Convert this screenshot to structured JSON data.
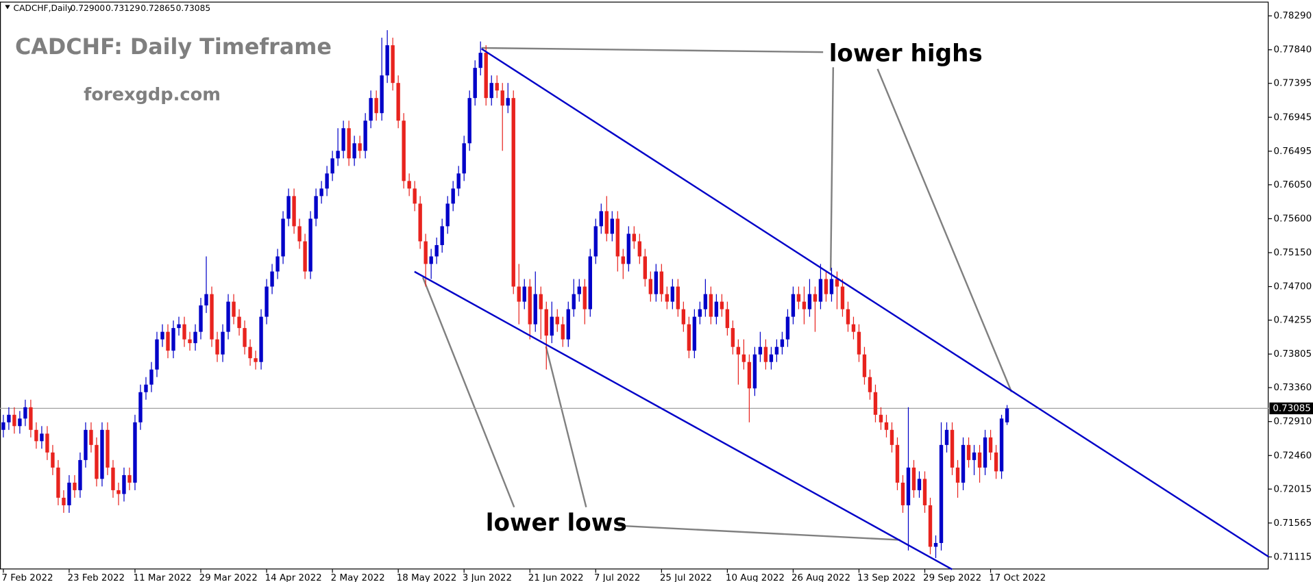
{
  "chart_data": {
    "type": "candlestick",
    "symbol": "CADCHF,Daily",
    "ohlc_labels": [
      "0.72900",
      "0.73129",
      "0.72865",
      "0.73085"
    ],
    "title": "CADCHF: Daily Timeframe",
    "subtitle": "forexgdp.com",
    "annotations": [
      "lower highs",
      "lower lows"
    ],
    "up_color": "#0000c8",
    "down_color": "#e8231e",
    "grid": false,
    "ylim": [
      0.7095,
      0.785
    ],
    "yticks": [
      {
        "value": 0.7829,
        "label": "0.78290"
      },
      {
        "value": 0.7784,
        "label": "0.77840"
      },
      0.77395,
      0.76945,
      0.76495,
      {
        "value": 0.7605,
        "label": "0.76050"
      },
      {
        "value": 0.756,
        "label": "0.75600"
      },
      {
        "value": 0.7515,
        "label": "0.75150"
      },
      {
        "value": 0.747,
        "label": "0.74700"
      },
      0.74255,
      0.73805,
      {
        "value": 0.7336,
        "label": "0.73360"
      },
      {
        "value": 0.7291,
        "label": "0.72910"
      },
      {
        "value": 0.7246,
        "label": "0.72460"
      },
      0.72015,
      0.71565,
      0.71115
    ],
    "current_price": {
      "value": 0.73085,
      "label": "0.73085"
    },
    "categories": [
      "7 Feb 2022",
      null,
      null,
      null,
      null,
      null,
      null,
      null,
      null,
      null,
      null,
      null,
      "23 Feb 2022",
      null,
      null,
      null,
      null,
      null,
      null,
      null,
      null,
      null,
      null,
      null,
      "11 Mar 2022",
      null,
      null,
      null,
      null,
      null,
      null,
      null,
      null,
      null,
      null,
      null,
      "29 Mar 2022",
      null,
      null,
      null,
      null,
      null,
      null,
      null,
      null,
      null,
      null,
      null,
      "14 Apr 2022",
      null,
      null,
      null,
      null,
      null,
      null,
      null,
      null,
      null,
      null,
      null,
      "2 May 2022",
      null,
      null,
      null,
      null,
      null,
      null,
      null,
      null,
      null,
      null,
      null,
      "18 May 2022",
      null,
      null,
      null,
      null,
      null,
      null,
      null,
      null,
      null,
      null,
      null,
      "3 Jun 2022",
      null,
      null,
      null,
      null,
      null,
      null,
      null,
      null,
      null,
      null,
      null,
      "21 Jun 2022",
      null,
      null,
      null,
      null,
      null,
      null,
      null,
      null,
      null,
      null,
      null,
      "7 Jul 2022",
      null,
      null,
      null,
      null,
      null,
      null,
      null,
      null,
      null,
      null,
      null,
      "25 Jul 2022",
      null,
      null,
      null,
      null,
      null,
      null,
      null,
      null,
      null,
      null,
      null,
      "10 Aug 2022",
      null,
      null,
      null,
      null,
      null,
      null,
      null,
      null,
      null,
      null,
      null,
      "26 Aug 2022",
      null,
      null,
      null,
      null,
      null,
      null,
      null,
      null,
      null,
      null,
      null,
      "13 Sep 2022",
      null,
      null,
      null,
      null,
      null,
      null,
      null,
      null,
      null,
      null,
      null,
      "29 Sep 2022",
      null,
      null,
      null,
      null,
      null,
      null,
      null,
      null,
      null,
      null,
      null,
      "17 Oct 2022",
      null,
      null,
      null
    ],
    "candles": [
      [
        0.728,
        0.73,
        0.727,
        0.729
      ],
      [
        0.729,
        0.731,
        0.728,
        0.73
      ],
      [
        0.73,
        0.731,
        0.7275,
        0.7285
      ],
      [
        0.7285,
        0.7305,
        0.7275,
        0.7295
      ],
      [
        0.7295,
        0.732,
        0.7285,
        0.731
      ],
      [
        0.731,
        0.732,
        0.727,
        0.728
      ],
      [
        0.728,
        0.729,
        0.7255,
        0.7265
      ],
      [
        0.7265,
        0.7285,
        0.7255,
        0.7275
      ],
      [
        0.7275,
        0.7285,
        0.724,
        0.725
      ],
      [
        0.725,
        0.726,
        0.722,
        0.723
      ],
      [
        0.723,
        0.724,
        0.718,
        0.719
      ],
      [
        0.719,
        0.72,
        0.717,
        0.718
      ],
      [
        0.718,
        0.722,
        0.717,
        0.721
      ],
      [
        0.721,
        0.722,
        0.719,
        0.72
      ],
      [
        0.72,
        0.725,
        0.719,
        0.724
      ],
      [
        0.724,
        0.729,
        0.723,
        0.728
      ],
      [
        0.728,
        0.729,
        0.725,
        0.726
      ],
      [
        0.726,
        0.727,
        0.7205,
        0.7215
      ],
      [
        0.7215,
        0.729,
        0.7205,
        0.728
      ],
      [
        0.728,
        0.729,
        0.722,
        0.723
      ],
      [
        0.723,
        0.724,
        0.719,
        0.72
      ],
      [
        0.72,
        0.721,
        0.718,
        0.7195
      ],
      [
        0.7195,
        0.723,
        0.7185,
        0.722
      ],
      [
        0.722,
        0.723,
        0.72,
        0.721
      ],
      [
        0.721,
        0.73,
        0.72,
        0.729
      ],
      [
        0.729,
        0.734,
        0.728,
        0.733
      ],
      [
        0.733,
        0.735,
        0.732,
        0.734
      ],
      [
        0.734,
        0.737,
        0.733,
        0.736
      ],
      [
        0.736,
        0.741,
        0.735,
        0.74
      ],
      [
        0.74,
        0.742,
        0.739,
        0.741
      ],
      [
        0.741,
        0.742,
        0.7375,
        0.7385
      ],
      [
        0.7385,
        0.7425,
        0.7375,
        0.7415
      ],
      [
        0.7415,
        0.743,
        0.7405,
        0.742
      ],
      [
        0.742,
        0.743,
        0.739,
        0.74
      ],
      [
        0.74,
        0.741,
        0.7385,
        0.7395
      ],
      [
        0.7395,
        0.742,
        0.7385,
        0.741
      ],
      [
        0.741,
        0.7455,
        0.74,
        0.7445
      ],
      [
        0.7445,
        0.751,
        0.7435,
        0.746
      ],
      [
        0.746,
        0.747,
        0.739,
        0.74
      ],
      [
        0.74,
        0.741,
        0.737,
        0.738
      ],
      [
        0.738,
        0.742,
        0.737,
        0.741
      ],
      [
        0.741,
        0.746,
        0.74,
        0.745
      ],
      [
        0.745,
        0.746,
        0.742,
        0.743
      ],
      [
        0.743,
        0.744,
        0.7405,
        0.7415
      ],
      [
        0.7415,
        0.7425,
        0.738,
        0.739
      ],
      [
        0.739,
        0.74,
        0.7365,
        0.7375
      ],
      [
        0.7375,
        0.7385,
        0.736,
        0.737
      ],
      [
        0.737,
        0.744,
        0.736,
        0.743
      ],
      [
        0.743,
        0.748,
        0.742,
        0.747
      ],
      [
        0.747,
        0.75,
        0.746,
        0.749
      ],
      [
        0.749,
        0.752,
        0.748,
        0.751
      ],
      [
        0.751,
        0.757,
        0.75,
        0.756
      ],
      [
        0.756,
        0.76,
        0.755,
        0.759
      ],
      [
        0.759,
        0.76,
        0.754,
        0.755
      ],
      [
        0.755,
        0.756,
        0.752,
        0.753
      ],
      [
        0.753,
        0.754,
        0.748,
        0.749
      ],
      [
        0.749,
        0.757,
        0.748,
        0.756
      ],
      [
        0.756,
        0.76,
        0.755,
        0.759
      ],
      [
        0.759,
        0.761,
        0.758,
        0.76
      ],
      [
        0.76,
        0.763,
        0.759,
        0.762
      ],
      [
        0.762,
        0.765,
        0.761,
        0.764
      ],
      [
        0.764,
        0.768,
        0.763,
        0.765
      ],
      [
        0.765,
        0.769,
        0.764,
        0.768
      ],
      [
        0.768,
        0.769,
        0.763,
        0.764
      ],
      [
        0.764,
        0.767,
        0.763,
        0.766
      ],
      [
        0.766,
        0.767,
        0.764,
        0.765
      ],
      [
        0.765,
        0.77,
        0.764,
        0.769
      ],
      [
        0.769,
        0.773,
        0.768,
        0.772
      ],
      [
        0.772,
        0.773,
        0.769,
        0.77
      ],
      [
        0.77,
        0.78,
        0.769,
        0.775
      ],
      [
        0.775,
        0.781,
        0.774,
        0.779
      ],
      [
        0.779,
        0.78,
        0.773,
        0.774
      ],
      [
        0.774,
        0.775,
        0.768,
        0.769
      ],
      [
        0.769,
        0.77,
        0.76,
        0.761
      ],
      [
        0.761,
        0.762,
        0.759,
        0.76
      ],
      [
        0.76,
        0.761,
        0.757,
        0.758
      ],
      [
        0.758,
        0.759,
        0.752,
        0.753
      ],
      [
        0.753,
        0.754,
        0.747,
        0.75
      ],
      [
        0.75,
        0.752,
        0.748,
        0.751
      ],
      [
        0.751,
        0.7535,
        0.75,
        0.7525
      ],
      [
        0.7525,
        0.756,
        0.7515,
        0.755
      ],
      [
        0.755,
        0.759,
        0.754,
        0.758
      ],
      [
        0.758,
        0.761,
        0.757,
        0.76
      ],
      [
        0.76,
        0.763,
        0.759,
        0.762
      ],
      [
        0.762,
        0.767,
        0.761,
        0.766
      ],
      [
        0.766,
        0.773,
        0.765,
        0.772
      ],
      [
        0.772,
        0.777,
        0.771,
        0.776
      ],
      [
        0.776,
        0.7795,
        0.775,
        0.778
      ],
      [
        0.778,
        0.779,
        0.771,
        0.772
      ],
      [
        0.772,
        0.775,
        0.771,
        0.774
      ],
      [
        0.774,
        0.775,
        0.772,
        0.773
      ],
      [
        0.773,
        0.774,
        0.765,
        0.771
      ],
      [
        0.771,
        0.774,
        0.77,
        0.772
      ],
      [
        0.772,
        0.773,
        0.746,
        0.747
      ],
      [
        0.747,
        0.75,
        0.742,
        0.745
      ],
      [
        0.745,
        0.748,
        0.744,
        0.747
      ],
      [
        0.747,
        0.748,
        0.74,
        0.742
      ],
      [
        0.742,
        0.749,
        0.741,
        0.746
      ],
      [
        0.746,
        0.747,
        0.74,
        0.744
      ],
      [
        0.744,
        0.745,
        0.736,
        0.7405
      ],
      [
        0.7405,
        0.745,
        0.7395,
        0.743
      ],
      [
        0.743,
        0.744,
        0.741,
        0.742
      ],
      [
        0.742,
        0.743,
        0.739,
        0.74
      ],
      [
        0.74,
        0.745,
        0.739,
        0.744
      ],
      [
        0.744,
        0.748,
        0.743,
        0.746
      ],
      [
        0.746,
        0.748,
        0.745,
        0.747
      ],
      [
        0.747,
        0.748,
        0.742,
        0.744
      ],
      [
        0.744,
        0.752,
        0.743,
        0.751
      ],
      [
        0.751,
        0.756,
        0.75,
        0.755
      ],
      [
        0.755,
        0.758,
        0.754,
        0.757
      ],
      [
        0.757,
        0.759,
        0.753,
        0.754
      ],
      [
        0.754,
        0.757,
        0.753,
        0.756
      ],
      [
        0.756,
        0.757,
        0.749,
        0.751
      ],
      [
        0.751,
        0.752,
        0.748,
        0.75
      ],
      [
        0.75,
        0.755,
        0.749,
        0.754
      ],
      [
        0.754,
        0.755,
        0.752,
        0.753
      ],
      [
        0.753,
        0.754,
        0.75,
        0.751
      ],
      [
        0.751,
        0.752,
        0.747,
        0.748
      ],
      [
        0.748,
        0.749,
        0.745,
        0.746
      ],
      [
        0.746,
        0.75,
        0.745,
        0.749
      ],
      [
        0.749,
        0.75,
        0.745,
        0.746
      ],
      [
        0.746,
        0.747,
        0.744,
        0.745
      ],
      [
        0.745,
        0.748,
        0.744,
        0.747
      ],
      [
        0.747,
        0.748,
        0.743,
        0.744
      ],
      [
        0.744,
        0.745,
        0.741,
        0.742
      ],
      [
        0.742,
        0.743,
        0.7375,
        0.7385
      ],
      [
        0.7385,
        0.744,
        0.7375,
        0.743
      ],
      [
        0.743,
        0.745,
        0.742,
        0.744
      ],
      [
        0.744,
        0.748,
        0.743,
        0.746
      ],
      [
        0.746,
        0.747,
        0.742,
        0.743
      ],
      [
        0.743,
        0.746,
        0.742,
        0.745
      ],
      [
        0.745,
        0.746,
        0.743,
        0.744
      ],
      [
        0.744,
        0.745,
        0.7405,
        0.7415
      ],
      [
        0.7415,
        0.7425,
        0.738,
        0.739
      ],
      [
        0.739,
        0.74,
        0.734,
        0.738
      ],
      [
        0.738,
        0.74,
        0.736,
        0.737
      ],
      [
        0.737,
        0.738,
        0.729,
        0.7335
      ],
      [
        0.7335,
        0.739,
        0.7325,
        0.738
      ],
      [
        0.738,
        0.741,
        0.737,
        0.739
      ],
      [
        0.739,
        0.74,
        0.736,
        0.737
      ],
      [
        0.737,
        0.739,
        0.736,
        0.738
      ],
      [
        0.738,
        0.74,
        0.737,
        0.739
      ],
      [
        0.739,
        0.741,
        0.738,
        0.74
      ],
      [
        0.74,
        0.744,
        0.739,
        0.743
      ],
      [
        0.743,
        0.747,
        0.742,
        0.746
      ],
      [
        0.746,
        0.747,
        0.744,
        0.745
      ],
      [
        0.745,
        0.747,
        0.742,
        0.744
      ],
      [
        0.744,
        0.748,
        0.743,
        0.746
      ],
      [
        0.746,
        0.747,
        0.741,
        0.745
      ],
      [
        0.745,
        0.75,
        0.744,
        0.748
      ],
      [
        0.748,
        0.749,
        0.745,
        0.746
      ],
      [
        0.746,
        0.7495,
        0.745,
        0.748
      ],
      [
        0.748,
        0.749,
        0.744,
        0.747
      ],
      [
        0.747,
        0.748,
        0.743,
        0.744
      ],
      [
        0.744,
        0.745,
        0.741,
        0.742
      ],
      [
        0.742,
        0.743,
        0.74,
        0.741
      ],
      [
        0.741,
        0.742,
        0.737,
        0.738
      ],
      [
        0.738,
        0.739,
        0.734,
        0.735
      ],
      [
        0.735,
        0.736,
        0.732,
        0.733
      ],
      [
        0.733,
        0.734,
        0.729,
        0.73
      ],
      [
        0.73,
        0.731,
        0.728,
        0.729
      ],
      [
        0.729,
        0.73,
        0.727,
        0.728
      ],
      [
        0.728,
        0.729,
        0.725,
        0.726
      ],
      [
        0.726,
        0.727,
        0.72,
        0.721
      ],
      [
        0.721,
        0.722,
        0.717,
        0.718
      ],
      [
        0.718,
        0.731,
        0.712,
        0.723
      ],
      [
        0.723,
        0.724,
        0.719,
        0.72
      ],
      [
        0.72,
        0.7225,
        0.719,
        0.7215
      ],
      [
        0.7215,
        0.7225,
        0.717,
        0.718
      ],
      [
        0.718,
        0.719,
        0.7115,
        0.7125
      ],
      [
        0.7125,
        0.714,
        0.711,
        0.713
      ],
      [
        0.713,
        0.729,
        0.712,
        0.726
      ],
      [
        0.726,
        0.729,
        0.725,
        0.728
      ],
      [
        0.728,
        0.729,
        0.722,
        0.723
      ],
      [
        0.723,
        0.724,
        0.719,
        0.721
      ],
      [
        0.721,
        0.727,
        0.72,
        0.726
      ],
      [
        0.726,
        0.727,
        0.723,
        0.724
      ],
      [
        0.724,
        0.726,
        0.722,
        0.725
      ],
      [
        0.725,
        0.726,
        0.721,
        0.723
      ],
      [
        0.723,
        0.728,
        0.722,
        0.727
      ],
      [
        0.727,
        0.728,
        0.724,
        0.725
      ],
      [
        0.725,
        0.726,
        0.7215,
        0.7225
      ],
      [
        0.7225,
        0.73,
        0.7215,
        0.7295
      ],
      [
        0.729,
        0.73129,
        0.72865,
        0.73085
      ]
    ]
  }
}
